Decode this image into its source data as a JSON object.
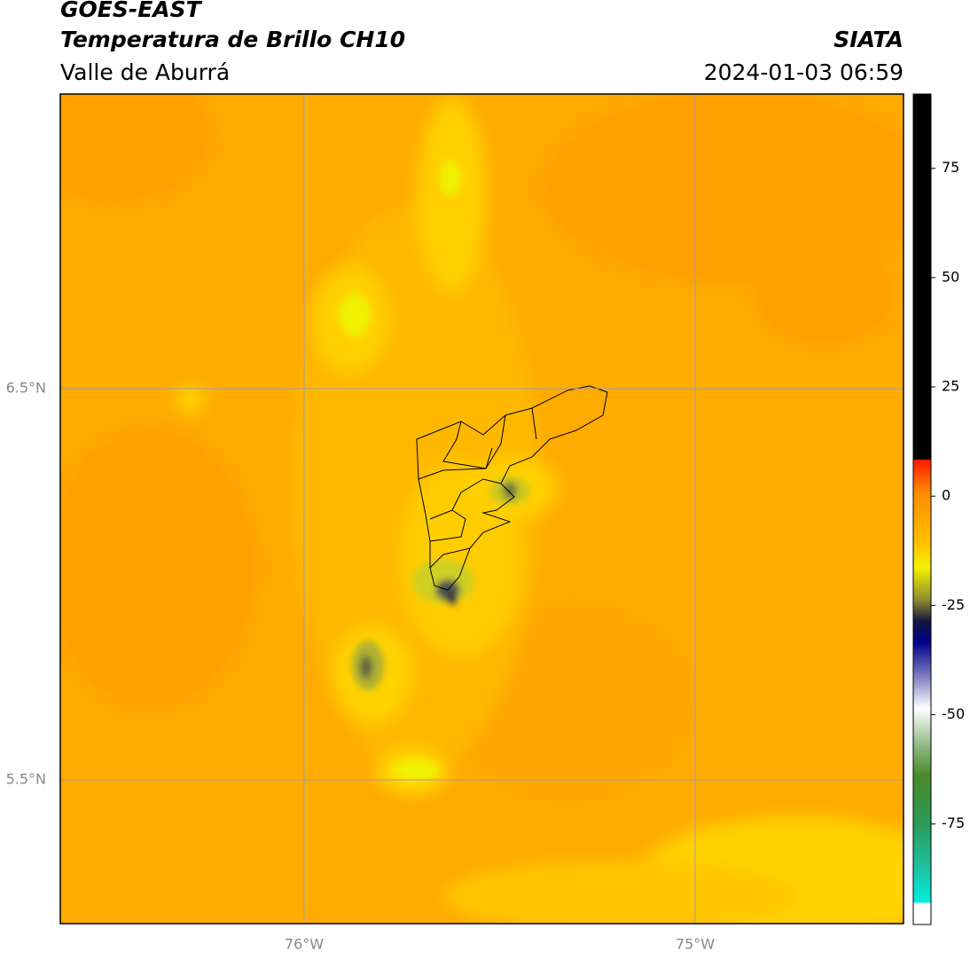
{
  "header": {
    "title": "GOES-EAST",
    "subtitle": "Temperatura de Brillo CH10",
    "region": "Valle de Aburrá",
    "source": "SIATA",
    "timestamp": "2024-01-03 06:59"
  },
  "map": {
    "lat_labels": [
      "6.5°N",
      "5.5°N"
    ],
    "lon_labels": [
      "76°W",
      "75°W"
    ]
  },
  "colorbar": {
    "range": [
      -98,
      92
    ],
    "ticks": [
      75,
      50,
      25,
      0,
      -25,
      -50,
      -75
    ]
  }
}
